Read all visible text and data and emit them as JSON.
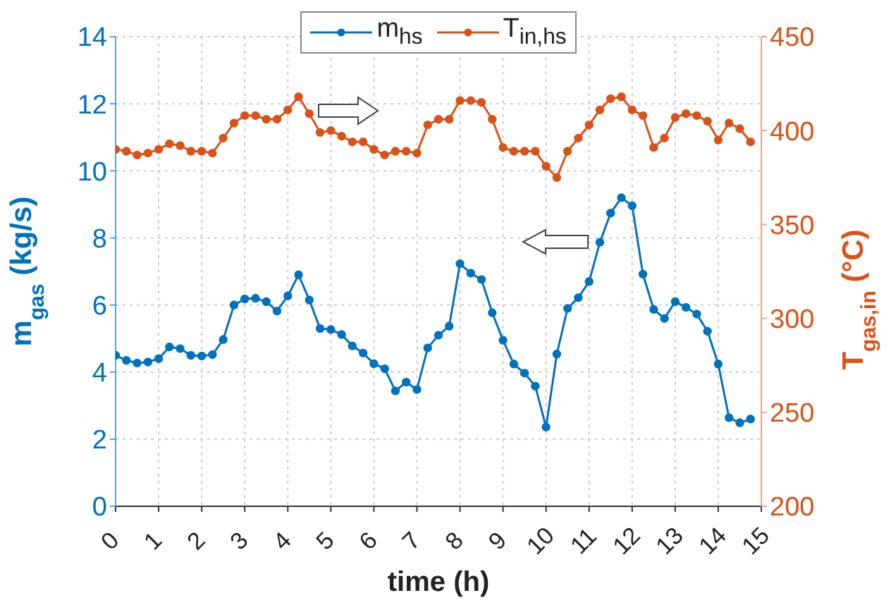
{
  "chart_data": {
    "type": "line",
    "xlabel": "time (h)",
    "ylabel": "m$_{gas}$ (kg/s)",
    "y2label": "T$_{gas,in}$ (°C)",
    "x": [
      0,
      0.25,
      0.5,
      0.75,
      1,
      1.25,
      1.5,
      1.75,
      2,
      2.25,
      2.5,
      2.75,
      3,
      3.25,
      3.5,
      3.75,
      4,
      4.25,
      4.5,
      4.75,
      5,
      5.25,
      5.5,
      5.75,
      6,
      6.25,
      6.5,
      6.75,
      7,
      7.25,
      7.5,
      7.75,
      8,
      8.25,
      8.5,
      8.75,
      9,
      9.25,
      9.5,
      9.75,
      10,
      10.25,
      10.5,
      10.75,
      11,
      11.25,
      11.5,
      11.75,
      12,
      12.25,
      12.5,
      12.75,
      13,
      13.25,
      13.5,
      13.75,
      14,
      14.25,
      14.5,
      14.75
    ],
    "series": [
      {
        "name": "m$_{hs}$",
        "color": "#0072bd",
        "values": [
          4.5,
          4.35,
          4.27,
          4.3,
          4.4,
          4.75,
          4.7,
          4.5,
          4.48,
          4.52,
          4.97,
          6.0,
          6.18,
          6.2,
          6.1,
          5.82,
          6.27,
          6.9,
          6.15,
          5.3,
          5.27,
          5.12,
          4.78,
          4.57,
          4.25,
          4.1,
          3.44,
          3.7,
          3.48,
          4.72,
          5.1,
          5.37,
          7.23,
          6.95,
          6.76,
          5.77,
          4.95,
          4.24,
          3.97,
          3.58,
          2.36,
          4.54,
          5.9,
          6.22,
          6.7,
          7.87,
          8.74,
          9.2,
          8.96,
          6.92,
          5.87,
          5.6,
          6.1,
          5.93,
          5.73,
          5.22,
          4.24,
          2.64,
          2.49,
          2.6
        ]
      },
      {
        "name": "T$_{in,hs}$",
        "color": "#d95319",
        "axis": "y2",
        "values": [
          390,
          389,
          387,
          388,
          390,
          393,
          392,
          389,
          389,
          388,
          396,
          404,
          408,
          408,
          406,
          406,
          411,
          418,
          409,
          399,
          400,
          397,
          394,
          394,
          390,
          387,
          389,
          389,
          388,
          403,
          406,
          406,
          416,
          416,
          415,
          406,
          391,
          389,
          389,
          389,
          381,
          375,
          389,
          396,
          403,
          411,
          417,
          418,
          411,
          408,
          391,
          396,
          407,
          409,
          408,
          405,
          395,
          404,
          401,
          394
        ]
      }
    ],
    "xlim": [
      0,
      15
    ],
    "xticks": [
      0,
      1,
      2,
      3,
      4,
      5,
      6,
      7,
      8,
      9,
      10,
      11,
      12,
      13,
      14,
      15
    ],
    "ylim": [
      0,
      14
    ],
    "yticks": [
      0,
      2,
      4,
      6,
      8,
      10,
      12,
      14
    ],
    "y2lim": [
      200,
      450
    ],
    "y2ticks": [
      200,
      250,
      300,
      350,
      400,
      450
    ],
    "grid": true,
    "legend": "top",
    "marker": "circle",
    "line_style": "solid"
  }
}
